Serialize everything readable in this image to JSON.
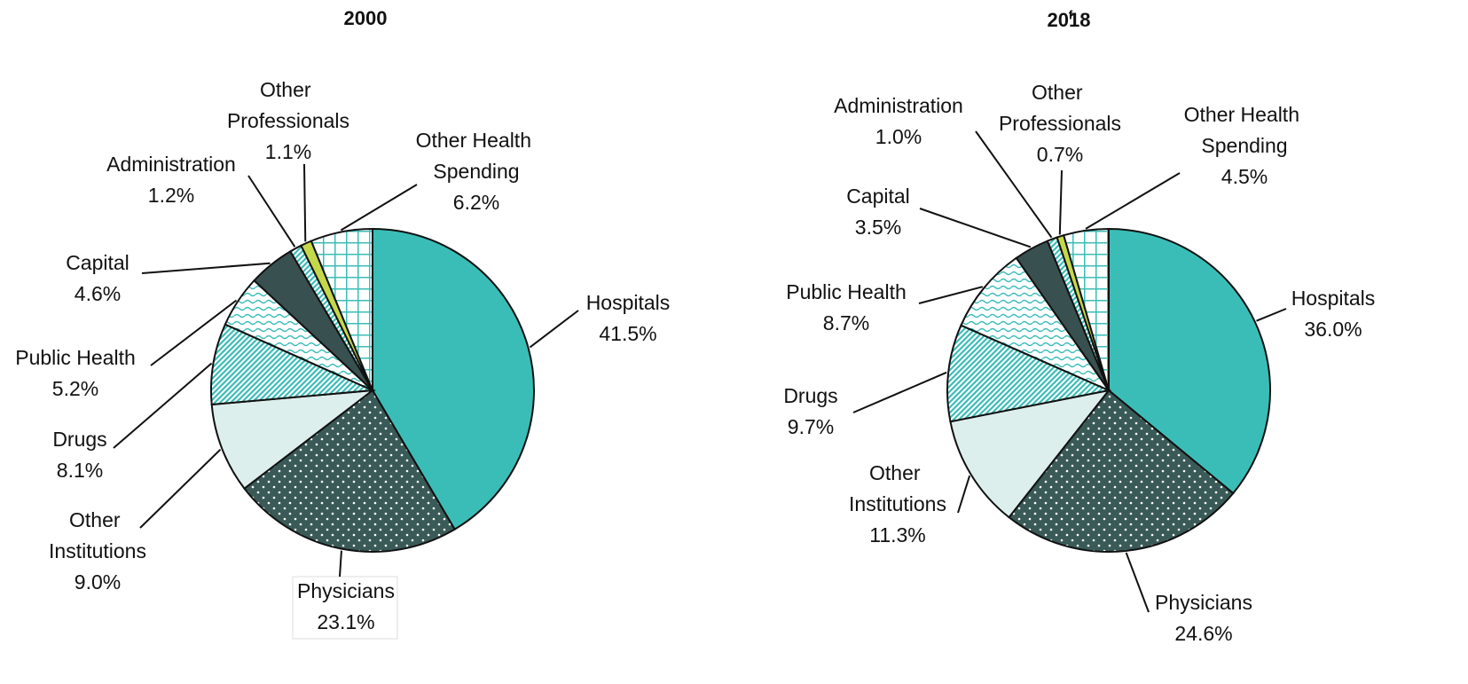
{
  "chart_data": [
    {
      "type": "pie",
      "title": "2000",
      "categories": [
        "Hospitals",
        "Physicians",
        "Other Institutions",
        "Drugs",
        "Public Health",
        "Capital",
        "Administration",
        "Other Professionals",
        "Other Health Spending"
      ],
      "values": [
        41.5,
        23.1,
        9.0,
        8.1,
        5.2,
        4.6,
        1.2,
        1.1,
        6.2
      ],
      "value_labels": [
        "41.5%",
        "23.1%",
        "9.0%",
        "8.1%",
        "5.2%",
        "4.6%",
        "1.2%",
        "1.1%",
        "6.2%"
      ],
      "colors": [
        "#3bbdb7",
        "#3a5a58",
        "#ddefec",
        "#3bbdb7",
        "#3bbdb7",
        "#38504f",
        "#3bbdb7",
        "#c5d84a",
        "#3bbdb7"
      ],
      "patterns": [
        "none",
        "dots",
        "none",
        "diagonal",
        "wave",
        "none",
        "diagonal",
        "none",
        "grid"
      ]
    },
    {
      "type": "pie",
      "title": "2018",
      "title_superscript": "f",
      "categories": [
        "Hospitals",
        "Physicians",
        "Other Institutions",
        "Drugs",
        "Public Health",
        "Capital",
        "Administration",
        "Other Professionals",
        "Other Health Spending"
      ],
      "values": [
        36.0,
        24.6,
        11.3,
        9.7,
        8.7,
        3.5,
        1.0,
        0.7,
        4.5
      ],
      "value_labels": [
        "36.0%",
        "24.6%",
        "11.3%",
        "9.7%",
        "8.7%",
        "3.5%",
        "1.0%",
        "0.7%",
        "4.5%"
      ],
      "colors": [
        "#3bbdb7",
        "#3a5a58",
        "#ddefec",
        "#3bbdb7",
        "#3bbdb7",
        "#38504f",
        "#3bbdb7",
        "#c5d84a",
        "#3bbdb7"
      ],
      "patterns": [
        "none",
        "dots",
        "none",
        "diagonal",
        "wave",
        "none",
        "diagonal",
        "none",
        "grid"
      ]
    }
  ]
}
